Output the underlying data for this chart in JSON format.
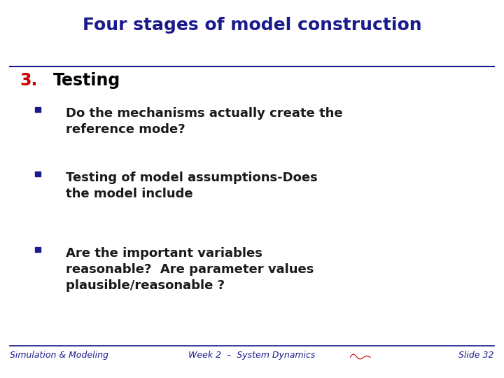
{
  "title": "Four stages of model construction",
  "title_color": "#1a1a8c",
  "title_fontsize": 18,
  "section_number": "3.",
  "section_number_color": "#cc0000",
  "section_title": "Testing",
  "section_title_color": "#000000",
  "section_fontsize": 17,
  "bullet_color": "#1a1a1a",
  "bullet_square_color": "#1a1a8c",
  "bullets": [
    "Do the mechanisms actually create the\nreference mode?",
    "Testing of model assumptions-Does\nthe model include",
    "Are the important variables\nreasonable?  Are parameter values\nplausible/reasonable ?"
  ],
  "bullet_fontsize": 13,
  "footer_left": "Simulation & Modeling",
  "footer_center": "Week 2  –  System Dynamics",
  "footer_right": "Slide 32",
  "footer_fontsize": 9,
  "footer_color": "#1a1a8c",
  "bg_color": "#ffffff",
  "separator_color": "#1a1a8c"
}
